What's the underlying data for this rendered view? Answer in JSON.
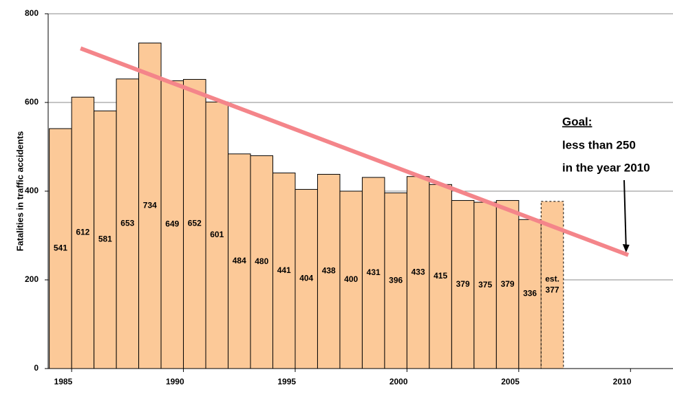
{
  "chart_data": {
    "type": "bar",
    "y_label": "Fatalities in traffic accidents",
    "x": [
      1985,
      1986,
      1987,
      1988,
      1989,
      1990,
      1991,
      1992,
      1993,
      1994,
      1995,
      1996,
      1997,
      1998,
      1999,
      2000,
      2001,
      2002,
      2003,
      2004,
      2005,
      2006,
      2007
    ],
    "values": [
      541,
      612,
      581,
      653,
      734,
      649,
      652,
      601,
      484,
      480,
      441,
      404,
      438,
      400,
      431,
      396,
      433,
      415,
      379,
      375,
      379,
      336,
      377
    ],
    "value_labels": [
      "541",
      "612",
      "581",
      "653",
      "734",
      "649",
      "652",
      "601",
      "484",
      "480",
      "441",
      "404",
      "438",
      "400",
      "431",
      "396",
      "433",
      "415",
      "379",
      "375",
      "379",
      "336",
      "est. 377"
    ],
    "color": "#fcc998",
    "xlim": [
      1984.45,
      2012.4
    ],
    "xticks": [
      1985,
      1990,
      1995,
      2000,
      2005,
      2010
    ],
    "ylim": [
      0,
      800
    ],
    "yticks": [
      0,
      200,
      400,
      600,
      800
    ],
    "grid": true,
    "trend_line": {
      "x": [
        1985.9,
        2010.4
      ],
      "values": [
        722,
        256
      ],
      "color": "#f4858a"
    },
    "annotation": {
      "title": "Goal:",
      "lines": [
        "less than 250",
        "in the year 2010"
      ],
      "arrow_x": 2010.3,
      "arrow_value": 262
    }
  }
}
